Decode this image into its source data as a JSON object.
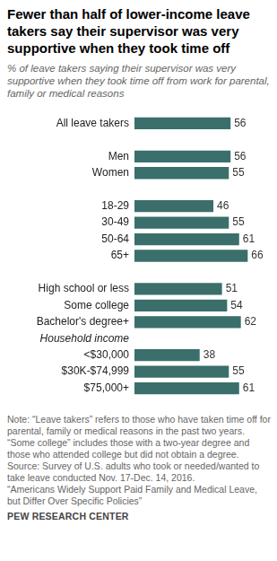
{
  "chart_data": {
    "type": "bar",
    "orientation": "horizontal",
    "title": "Fewer than half of lower-income leave takers say their supervisor was very supportive when they took time off",
    "subtitle": "% of leave takers saying their supervisor was very supportive when they took time off from work for parental, family or medical reasons",
    "categories": [
      "All leave takers",
      null,
      "Men",
      "Women",
      null,
      "18-29",
      "30-49",
      "50-64",
      "65+",
      null,
      "High school or less",
      "Some college",
      "Bachelor's degree+",
      "Household income",
      "<$30,000",
      "$30K-$74,999",
      "$75,000+"
    ],
    "values": [
      56,
      null,
      56,
      55,
      null,
      46,
      55,
      61,
      66,
      null,
      51,
      54,
      62,
      null,
      38,
      55,
      61
    ],
    "color": "#3a6f6b",
    "xlim": [
      0,
      70
    ],
    "grid": false,
    "data_labels": true,
    "tick_labels": "y",
    "note": "Note: “Leave takers” refers to those who have taken time off for parental, family or medical reasons in the past two years. “Some college” includes those with a two-year degree and those who attended college but did not obtain a degree.",
    "source": "Source: Survey of U.S. adults who took or needed/wanted to take leave conducted Nov. 17-Dec. 14, 2016.",
    "report": "“Americans Widely Support Paid Family and Medical Leave, but Differ Over Specific Policies”",
    "credit": "PEW RESEARCH CENTER"
  }
}
